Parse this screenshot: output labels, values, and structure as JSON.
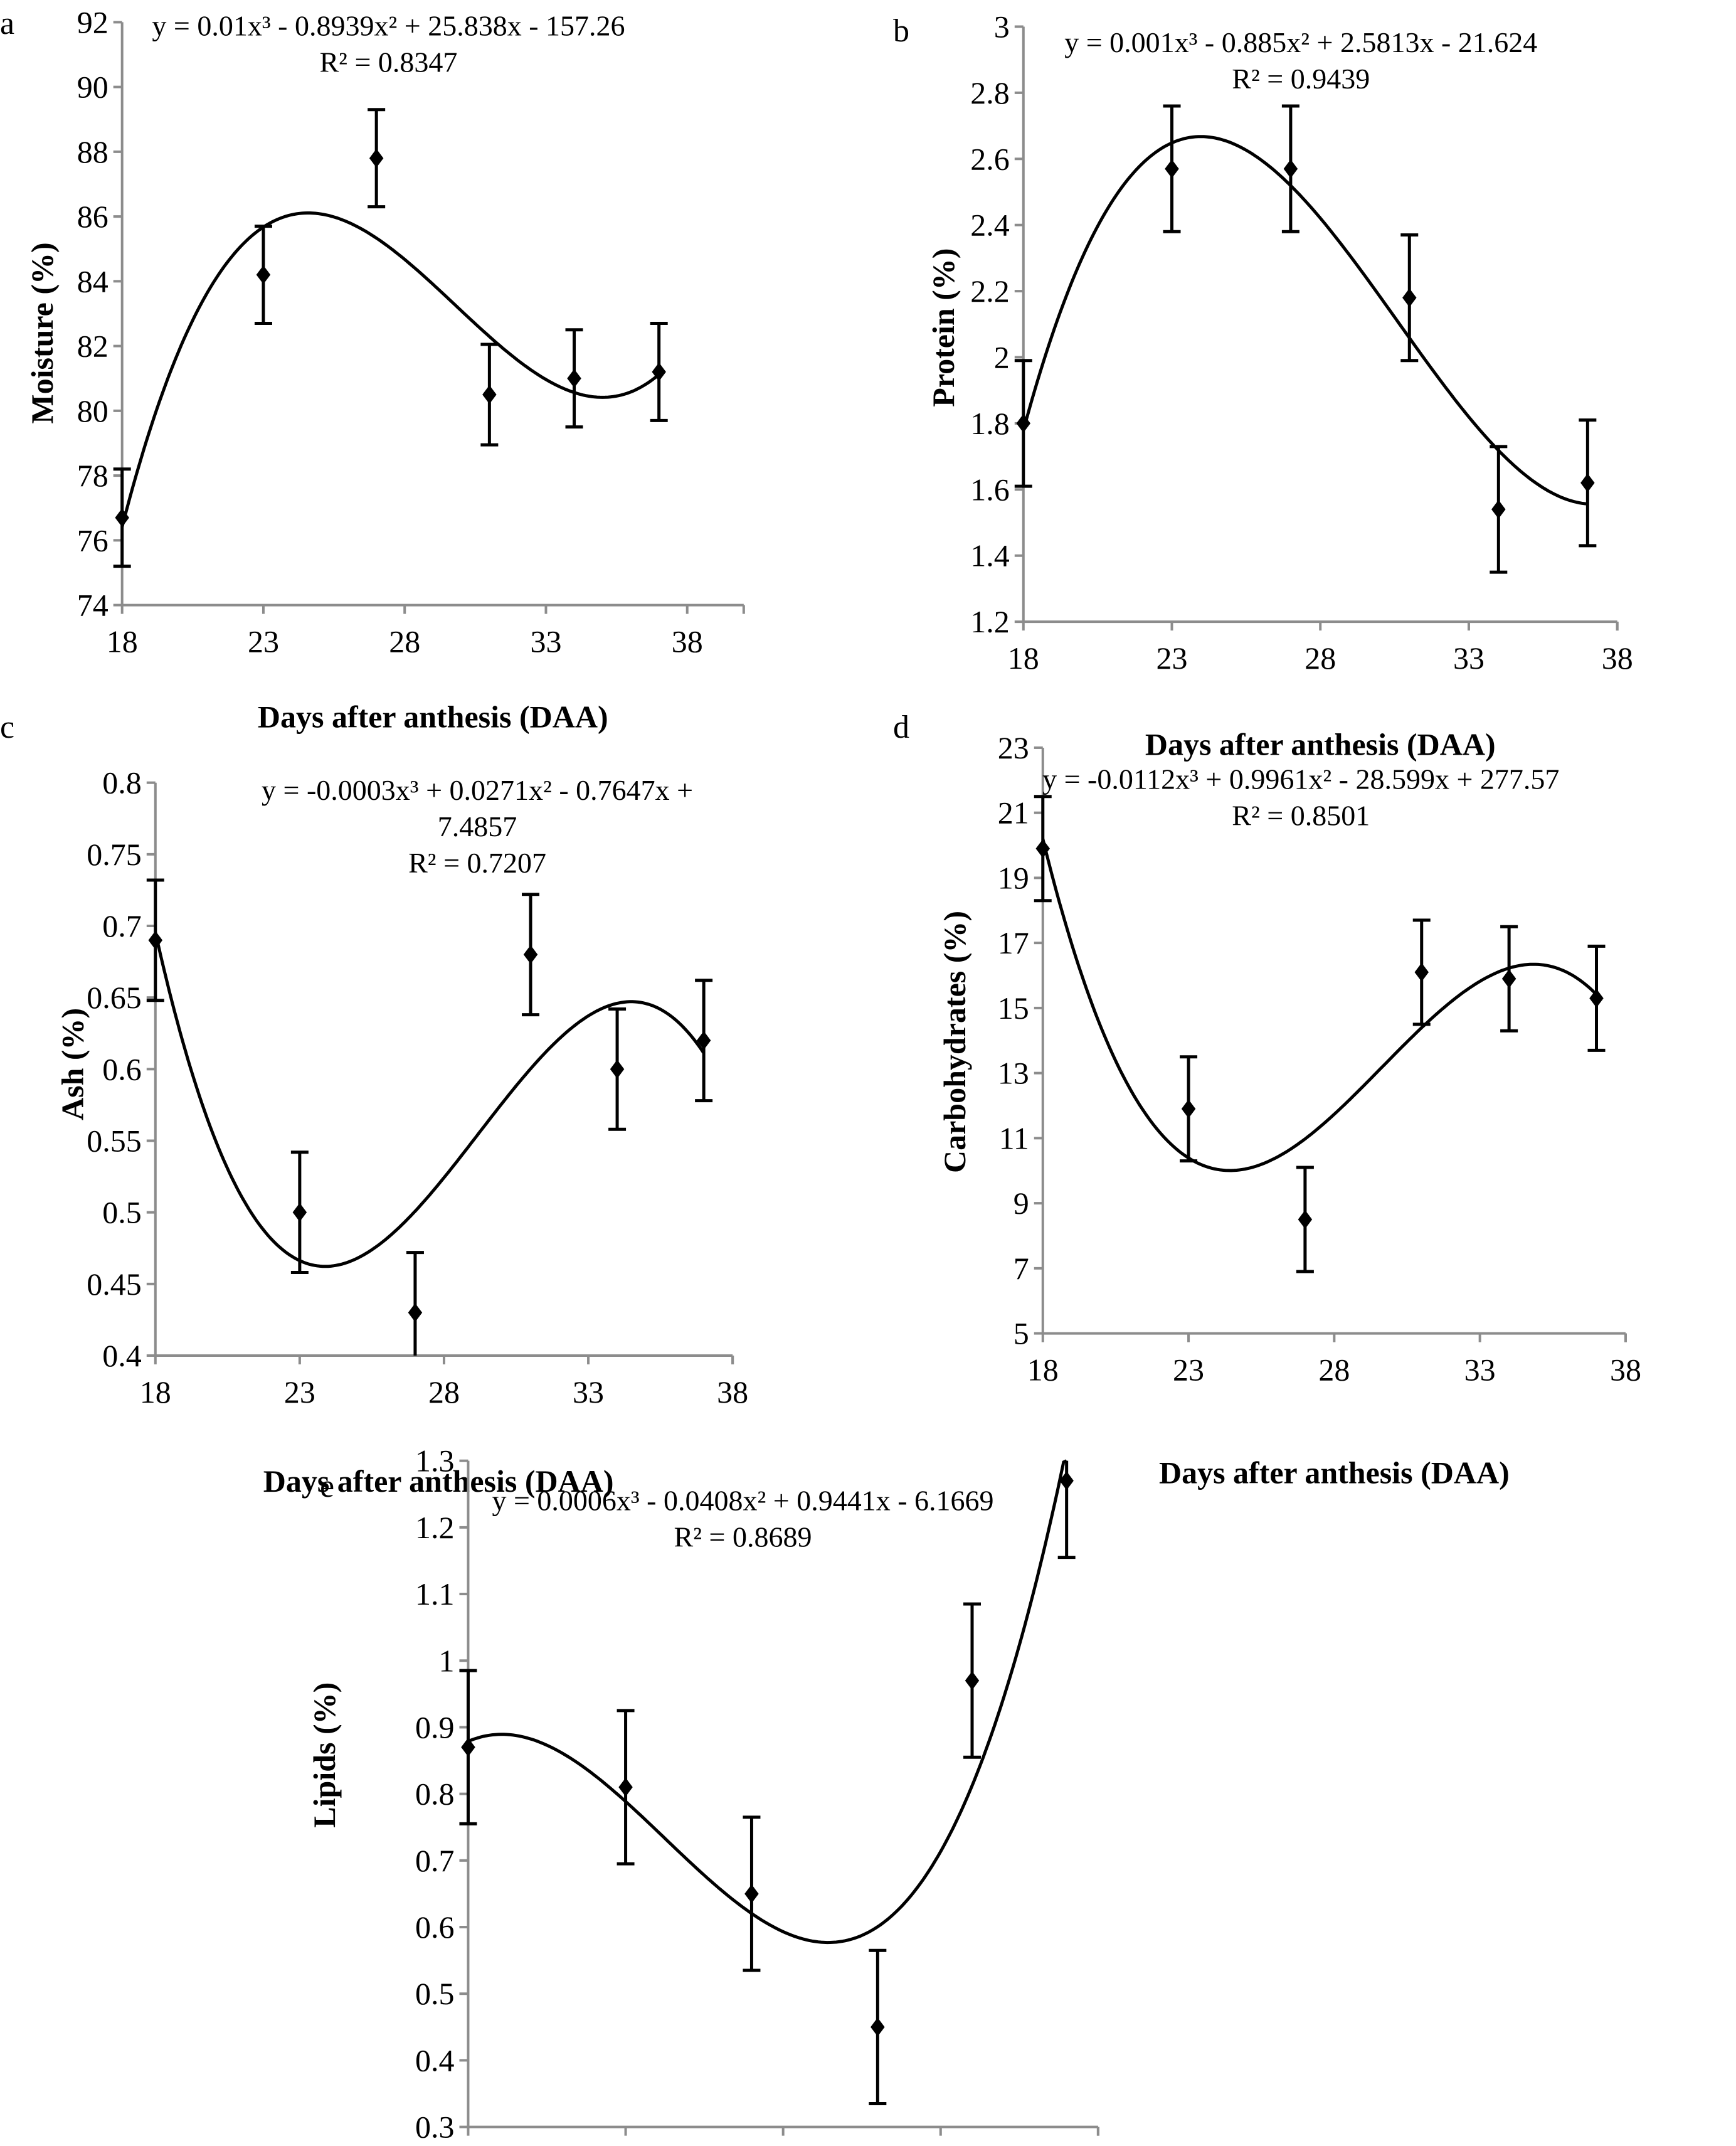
{
  "chart_data": [
    {
      "id": "a",
      "panel_letter": "a",
      "type": "scatter",
      "title": "",
      "xlabel": "Days after anthesis (DAA)",
      "ylabel": "Moisture  (%)",
      "xlim": [
        18,
        40
      ],
      "ylim": [
        74,
        92
      ],
      "xticks": [
        18,
        23,
        28,
        33,
        38
      ],
      "yticks": [
        74,
        76,
        78,
        80,
        82,
        84,
        86,
        88,
        90,
        92
      ],
      "grid": false,
      "x": [
        18,
        23,
        27,
        31,
        34,
        37
      ],
      "values": [
        76.7,
        84.2,
        87.8,
        80.5,
        81.0,
        81.2
      ],
      "error": [
        1.5,
        1.5,
        1.5,
        1.55,
        1.5,
        1.5
      ],
      "trendline": "polynomial order 3",
      "equation_lines": [
        "y = 0.01x³ - 0.8939x² + 25.838x - 157.26",
        "R² = 0.8347"
      ]
    },
    {
      "id": "b",
      "panel_letter": "b",
      "type": "scatter",
      "title": "",
      "xlabel": "Days after anthesis (DAA)",
      "ylabel": "Protein  (%)",
      "xlim": [
        18,
        38
      ],
      "ylim": [
        1.2,
        3
      ],
      "xticks": [
        18,
        23,
        28,
        33,
        38
      ],
      "yticks": [
        1.2,
        1.4,
        1.6,
        1.8,
        2,
        2.2,
        2.4,
        2.6,
        2.8,
        3
      ],
      "grid": false,
      "x": [
        18,
        23,
        27,
        31,
        34,
        37
      ],
      "values": [
        1.8,
        2.57,
        2.57,
        2.18,
        1.54,
        1.62
      ],
      "error": [
        0.19,
        0.19,
        0.19,
        0.19,
        0.19,
        0.19
      ],
      "trendline": "polynomial order 3",
      "equation_lines": [
        "y = 0.001x³ - 0.885x² + 2.5813x - 21.624",
        "R² = 0.9439"
      ]
    },
    {
      "id": "c",
      "panel_letter": "c",
      "type": "scatter",
      "title": "",
      "xlabel": "Days after anthesis (DAA)",
      "ylabel": "Ash  (%)",
      "xlim": [
        18,
        38
      ],
      "ylim": [
        0.4,
        0.8
      ],
      "xticks": [
        18,
        23,
        28,
        33,
        38
      ],
      "yticks": [
        0.4,
        0.45,
        0.5,
        0.55,
        0.6,
        0.65,
        0.7,
        0.75,
        0.8
      ],
      "grid": false,
      "x": [
        18,
        23,
        27,
        31,
        34,
        37
      ],
      "values": [
        0.69,
        0.5,
        0.43,
        0.68,
        0.6,
        0.62
      ],
      "error": [
        0.042,
        0.042,
        0.042,
        0.042,
        0.042,
        0.042
      ],
      "trendline": "polynomial order 3",
      "equation_lines": [
        "y = -0.0003x³ + 0.0271x² - 0.7647x +",
        "7.4857",
        "R² = 0.7207"
      ]
    },
    {
      "id": "d",
      "panel_letter": "d",
      "type": "scatter",
      "title": "",
      "xlabel": "Days after anthesis (DAA)",
      "ylabel": "Carbohydrates (%)",
      "xlim": [
        18,
        38
      ],
      "ylim": [
        5,
        23
      ],
      "xticks": [
        18,
        23,
        28,
        33,
        38
      ],
      "yticks": [
        5,
        7,
        9,
        11,
        13,
        15,
        17,
        19,
        21,
        23
      ],
      "grid": false,
      "x": [
        18,
        23,
        27,
        31,
        34,
        37
      ],
      "values": [
        19.9,
        11.9,
        8.5,
        16.1,
        15.9,
        15.3
      ],
      "error": [
        1.6,
        1.6,
        1.6,
        1.6,
        1.6,
        1.6
      ],
      "trendline": "polynomial order 3",
      "equation_lines": [
        "y = -0.0112x³ + 0.9961x² - 28.599x + 277.57",
        "R² = 0.8501"
      ]
    },
    {
      "id": "e",
      "panel_letter": "e",
      "type": "scatter",
      "title": "",
      "xlabel": "Days after anthesis (DAA)",
      "ylabel": "Lipids  (%)",
      "xlim": [
        18,
        38
      ],
      "ylim": [
        0.3,
        1.3
      ],
      "xticks": [
        18,
        23,
        28,
        33,
        38
      ],
      "yticks": [
        0.3,
        0.4,
        0.5,
        0.6,
        0.7,
        0.8,
        0.9,
        1,
        1.1,
        1.2,
        1.3
      ],
      "grid": false,
      "x": [
        18,
        23,
        27,
        31,
        34,
        37
      ],
      "values": [
        0.87,
        0.81,
        0.65,
        0.45,
        0.97,
        1.27
      ],
      "error": [
        0.115,
        0.115,
        0.115,
        0.115,
        0.115,
        0.115
      ],
      "trendline": "polynomial order 3",
      "equation_lines": [
        "y = 0.0006x³ - 0.0408x² + 0.9441x - 6.1669",
        "R² = 0.8689"
      ]
    }
  ]
}
